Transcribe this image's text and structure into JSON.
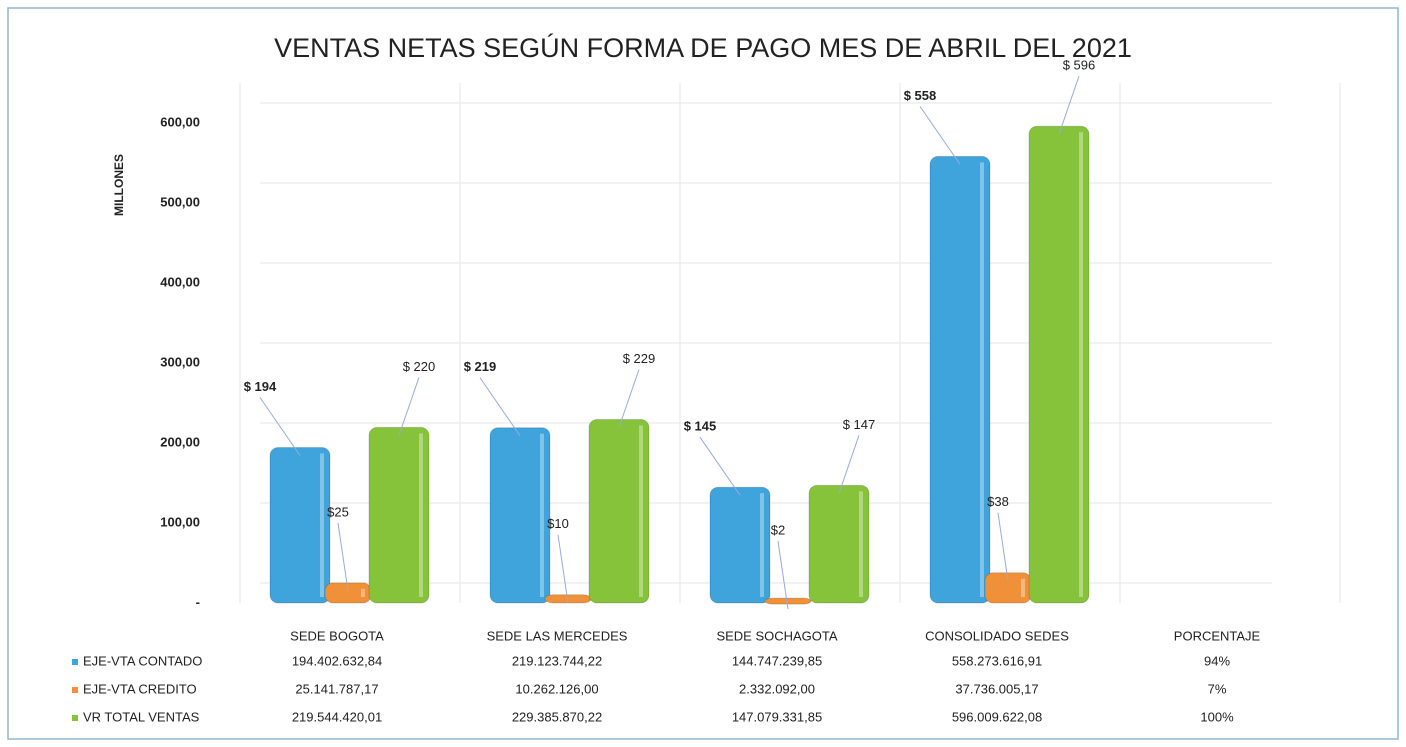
{
  "chart_data": {
    "type": "bar",
    "title": "VENTAS NETAS SEGÚN FORMA DE PAGO MES DE ABRIL DEL 2021",
    "y_label": "MILLONES",
    "categories": [
      "SEDE BOGOTA",
      "SEDE LAS MERCEDES",
      "SEDE SOCHAGOTA",
      "CONSOLIDADO SEDES"
    ],
    "extra_column": "PORCENTAJE",
    "series": [
      {
        "name": "EJE-VTA CONTADO",
        "color": "#3fa3dc",
        "values": [
          194.40263284,
          219.12374422,
          144.74723985,
          558.27361691
        ],
        "value_labels": [
          "$ 194",
          "$ 219",
          "$ 145",
          "$ 558"
        ],
        "table": [
          "194.402.632,84",
          "219.123.744,22",
          "144.747.239,85",
          "558.273.616,91",
          "94%"
        ]
      },
      {
        "name": "EJE-VTA CREDITO",
        "color": "#f0913a",
        "values": [
          25.14178717,
          10.262126,
          2.332092,
          37.73600517
        ],
        "value_labels": [
          "$25",
          "$10",
          "$2",
          "$38"
        ],
        "table": [
          "25.141.787,17",
          "10.262.126,00",
          "2.332.092,00",
          "37.736.005,17",
          "7%"
        ]
      },
      {
        "name": "VR TOTAL VENTAS",
        "color": "#86c33a",
        "values": [
          219.54442001,
          229.38587022,
          147.07933185,
          596.00962208
        ],
        "value_labels": [
          "$ 220",
          "$ 229",
          "$ 147",
          "$ 596"
        ],
        "table": [
          "219.544.420,01",
          "229.385.870,22",
          "147.079.331,85",
          "596.009.622,08",
          "100%"
        ]
      }
    ],
    "ylim": [
      0,
      650
    ],
    "yticks": [
      {
        "value": 0,
        "label": "-"
      },
      {
        "value": 100,
        "label": "100,00"
      },
      {
        "value": 200,
        "label": "200,00"
      },
      {
        "value": 300,
        "label": "300,00"
      },
      {
        "value": 400,
        "label": "400,00"
      },
      {
        "value": 500,
        "label": "500,00"
      },
      {
        "value": 600,
        "label": "600,00"
      }
    ],
    "grid": true
  }
}
